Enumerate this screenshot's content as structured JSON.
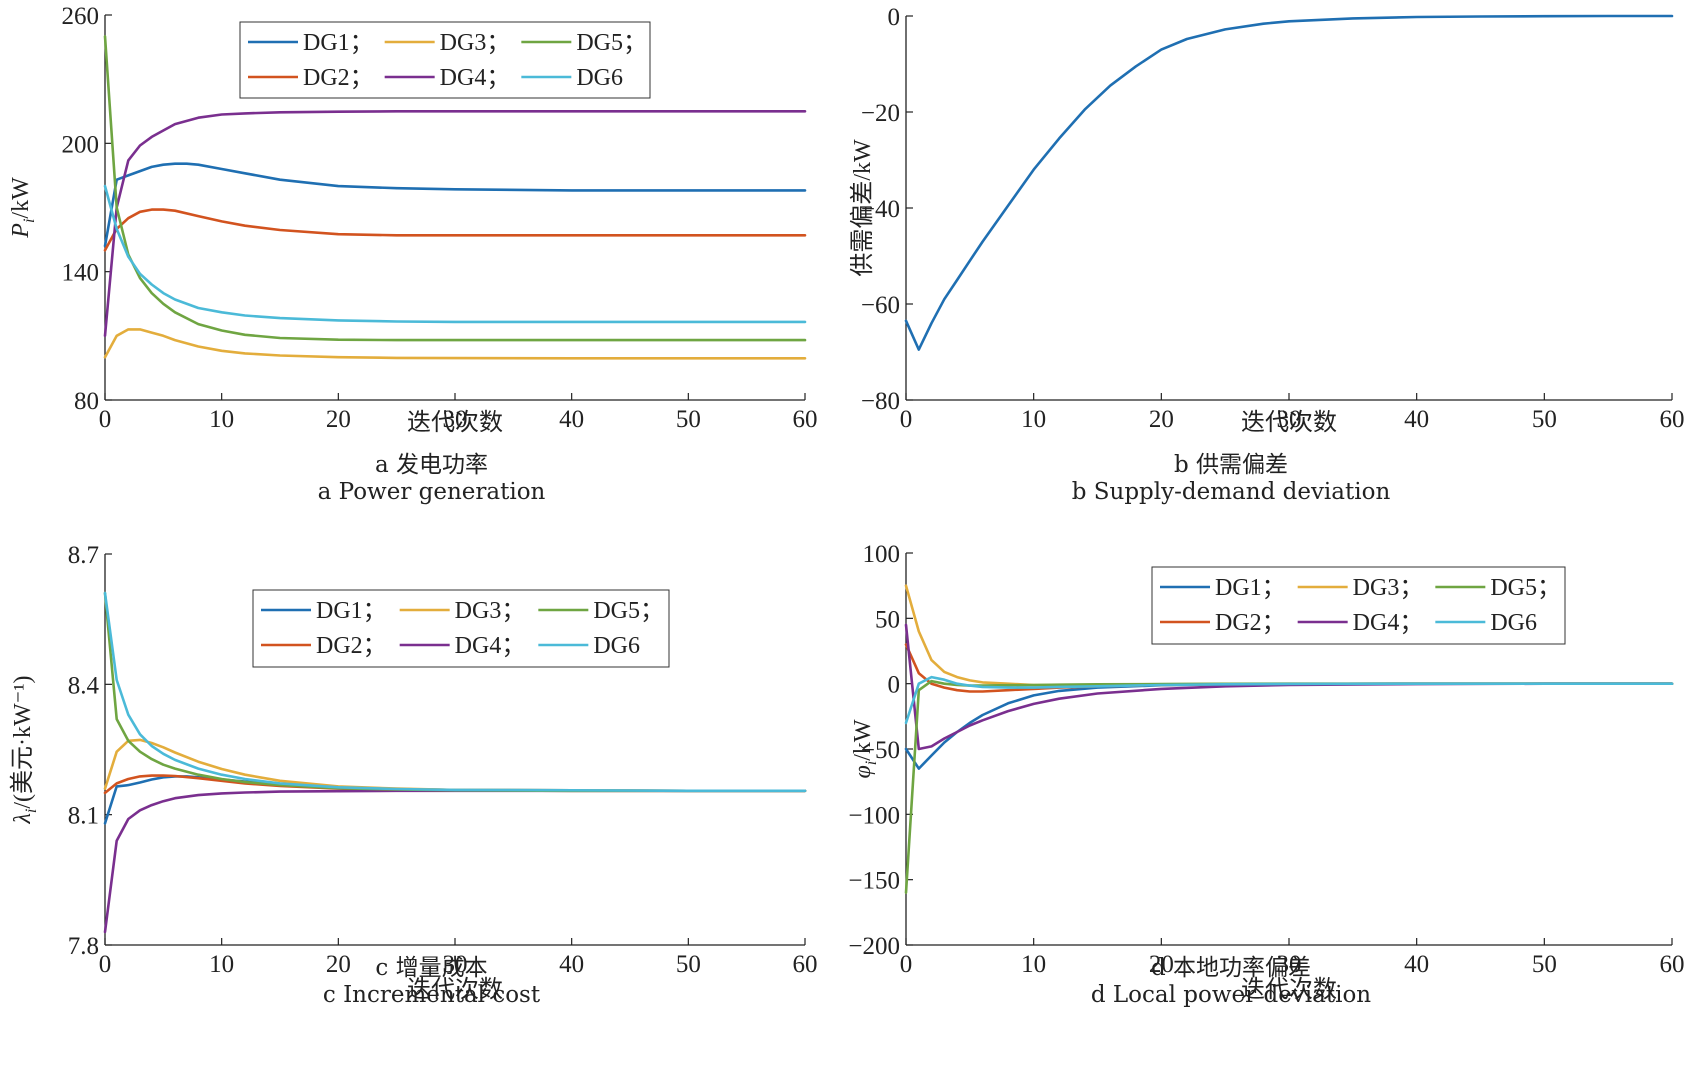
{
  "panels": [
    {
      "id": "a",
      "caption_cn": "a 发电功率",
      "caption_en": "a  Power generation"
    },
    {
      "id": "b",
      "caption_cn": "b 供需偏差",
      "caption_en": "b  Supply-demand deviation"
    },
    {
      "id": "c",
      "caption_cn": "c 增量成本",
      "caption_en": "c  Incremental cost"
    },
    {
      "id": "d",
      "caption_cn": "d 本地功率偏差",
      "caption_en": "d  Local power deviation"
    }
  ],
  "colors": {
    "DG1": "#1f6fb2",
    "DG2": "#d2531f",
    "DG3": "#e3ad3c",
    "DG4": "#7a2f8f",
    "DG5": "#6fa542",
    "DG6": "#4bbad8",
    "single": "#1f6fb2",
    "axis": "#222222"
  },
  "chart_data": [
    {
      "type": "line",
      "xlabel": "迭代次数",
      "ylabel_main": "P",
      "ylabel_sub": "i",
      "ylabel_rest": "/kW",
      "xlim": [
        0,
        60
      ],
      "ylim": [
        80,
        260
      ],
      "xticks": [
        0,
        10,
        20,
        30,
        40,
        50,
        60
      ],
      "yticks": [
        80,
        140,
        200,
        260
      ],
      "legend": "top-center",
      "legend_order": [
        "DG1",
        "DG3",
        "DG5",
        "DG2",
        "DG4",
        "DG6"
      ],
      "legend_labels": [
        "DG1；",
        "DG3；",
        "DG5；",
        "DG2；",
        "DG4；",
        "DG6"
      ],
      "series": [
        {
          "name": "DG1",
          "x": [
            0,
            1,
            2,
            3,
            4,
            5,
            6,
            7,
            8,
            10,
            12,
            15,
            20,
            25,
            30,
            40,
            50,
            60
          ],
          "values": [
            152,
            183,
            185,
            187,
            189,
            190,
            190.5,
            190.5,
            190,
            188,
            186,
            183,
            180,
            179,
            178.5,
            178,
            178,
            178
          ]
        },
        {
          "name": "DG2",
          "x": [
            0,
            1,
            2,
            3,
            4,
            5,
            6,
            8,
            10,
            12,
            15,
            20,
            25,
            30,
            40,
            50,
            60
          ],
          "values": [
            150,
            160,
            165,
            168,
            169,
            169,
            168.5,
            166,
            163.5,
            161.5,
            159.5,
            157.5,
            157,
            157,
            157,
            157,
            157
          ]
        },
        {
          "name": "DG3",
          "x": [
            0,
            1,
            2,
            3,
            4,
            5,
            6,
            8,
            10,
            12,
            15,
            20,
            25,
            30,
            40,
            50,
            60
          ],
          "values": [
            100,
            110,
            113,
            113,
            111.5,
            110,
            108,
            105,
            103,
            101.8,
            100.8,
            100,
            99.7,
            99.6,
            99.5,
            99.5,
            99.5
          ]
        },
        {
          "name": "DG4",
          "x": [
            0,
            1,
            2,
            3,
            4,
            5,
            6,
            8,
            10,
            12,
            15,
            20,
            25,
            30,
            40,
            50,
            60
          ],
          "values": [
            110,
            170,
            192,
            199,
            203,
            206,
            209,
            212,
            213.5,
            214,
            214.5,
            214.8,
            215,
            215,
            215,
            215,
            215
          ]
        },
        {
          "name": "DG5",
          "x": [
            0,
            1,
            2,
            3,
            4,
            5,
            6,
            8,
            10,
            12,
            15,
            20,
            25,
            30,
            40,
            50,
            60
          ],
          "values": [
            250,
            170,
            148,
            137,
            130,
            125,
            121,
            115.5,
            112.5,
            110.5,
            109,
            108.2,
            108,
            108,
            108,
            108,
            108
          ]
        },
        {
          "name": "DG6",
          "x": [
            0,
            1,
            2,
            3,
            4,
            5,
            6,
            8,
            10,
            12,
            15,
            20,
            25,
            30,
            40,
            50,
            60
          ],
          "values": [
            180,
            160,
            147,
            139,
            134,
            130,
            127,
            123,
            121,
            119.5,
            118.3,
            117.2,
            116.7,
            116.5,
            116.5,
            116.5,
            116.5
          ]
        }
      ]
    },
    {
      "type": "line",
      "xlabel": "迭代次数",
      "ylabel_main": "供需偏差/kW",
      "ylabel_sub": "",
      "ylabel_rest": "",
      "xlim": [
        0,
        60
      ],
      "ylim": [
        -80,
        0
      ],
      "xticks": [
        0,
        10,
        20,
        30,
        40,
        50,
        60
      ],
      "yticks": [
        -80,
        -60,
        -40,
        -20,
        0
      ],
      "series": [
        {
          "name": "",
          "x": [
            0,
            1,
            2,
            3,
            4,
            5,
            6,
            8,
            10,
            12,
            14,
            16,
            18,
            20,
            22,
            25,
            28,
            30,
            35,
            40,
            45,
            50,
            55,
            60
          ],
          "values": [
            -63.5,
            -69.5,
            -64,
            -59,
            -55,
            -51,
            -47,
            -39.5,
            -32,
            -25.5,
            -19.5,
            -14.5,
            -10.5,
            -7,
            -4.8,
            -2.8,
            -1.6,
            -1.1,
            -0.5,
            -0.2,
            -0.1,
            -0.05,
            0,
            0
          ]
        }
      ]
    },
    {
      "type": "line",
      "xlabel": "迭代次数",
      "ylabel_main": "λ",
      "ylabel_sub": "i",
      "ylabel_rest": "/(美元·kW⁻¹)",
      "xlim": [
        0,
        60
      ],
      "ylim": [
        7.8,
        8.7
      ],
      "xticks": [
        0,
        10,
        20,
        30,
        40,
        50,
        60
      ],
      "yticks": [
        7.8,
        8.1,
        8.4,
        8.7
      ],
      "legend": "top-center",
      "legend_order": [
        "DG1",
        "DG3",
        "DG5",
        "DG2",
        "DG4",
        "DG6"
      ],
      "legend_labels": [
        "DG1；",
        "DG3；",
        "DG5；",
        "DG2；",
        "DG4；",
        "DG6"
      ],
      "series": [
        {
          "name": "DG1",
          "x": [
            0,
            1,
            2,
            3,
            4,
            5,
            6,
            7,
            8,
            10,
            12,
            15,
            20,
            25,
            30,
            40,
            50,
            60
          ],
          "values": [
            8.08,
            8.165,
            8.168,
            8.174,
            8.181,
            8.186,
            8.188,
            8.188,
            8.186,
            8.181,
            8.176,
            8.17,
            8.162,
            8.159,
            8.157,
            8.156,
            8.155,
            8.155
          ]
        },
        {
          "name": "DG2",
          "x": [
            0,
            1,
            2,
            3,
            4,
            5,
            6,
            8,
            10,
            12,
            15,
            20,
            25,
            30,
            40,
            50,
            60
          ],
          "values": [
            8.15,
            8.172,
            8.182,
            8.188,
            8.19,
            8.19,
            8.189,
            8.184,
            8.178,
            8.172,
            8.166,
            8.16,
            8.157,
            8.156,
            8.155,
            8.155,
            8.155
          ]
        },
        {
          "name": "DG3",
          "x": [
            0,
            1,
            2,
            3,
            4,
            5,
            6,
            8,
            10,
            12,
            15,
            20,
            25,
            30,
            40,
            50,
            60
          ],
          "values": [
            8.16,
            8.245,
            8.27,
            8.272,
            8.265,
            8.255,
            8.243,
            8.222,
            8.205,
            8.192,
            8.178,
            8.165,
            8.16,
            8.157,
            8.156,
            8.155,
            8.155
          ]
        },
        {
          "name": "DG4",
          "x": [
            0,
            1,
            2,
            3,
            4,
            5,
            6,
            8,
            10,
            12,
            15,
            20,
            25,
            30,
            40,
            50,
            60
          ],
          "values": [
            7.83,
            8.04,
            8.09,
            8.11,
            8.122,
            8.131,
            8.138,
            8.145,
            8.149,
            8.151,
            8.153,
            8.154,
            8.155,
            8.155,
            8.155,
            8.155,
            8.155
          ]
        },
        {
          "name": "DG5",
          "x": [
            0,
            1,
            2,
            3,
            4,
            5,
            6,
            8,
            10,
            12,
            15,
            20,
            25,
            30,
            40,
            50,
            60
          ],
          "values": [
            8.61,
            8.32,
            8.27,
            8.245,
            8.228,
            8.215,
            8.206,
            8.192,
            8.182,
            8.175,
            8.168,
            8.161,
            8.158,
            8.156,
            8.155,
            8.155,
            8.155
          ]
        },
        {
          "name": "DG6",
          "x": [
            0,
            1,
            2,
            3,
            4,
            5,
            6,
            8,
            10,
            12,
            15,
            20,
            25,
            30,
            40,
            50,
            60
          ],
          "values": [
            8.61,
            8.41,
            8.33,
            8.285,
            8.258,
            8.24,
            8.226,
            8.206,
            8.192,
            8.182,
            8.172,
            8.163,
            8.159,
            8.157,
            8.156,
            8.155,
            8.155
          ]
        }
      ]
    },
    {
      "type": "line",
      "xlabel": "迭代次数",
      "ylabel_main": "φ",
      "ylabel_sub": "i",
      "ylabel_rest": "/kW",
      "xlim": [
        0,
        60
      ],
      "ylim": [
        -200,
        100
      ],
      "xticks": [
        0,
        10,
        20,
        30,
        40,
        50,
        60
      ],
      "yticks": [
        -200,
        -150,
        -100,
        -50,
        0,
        50,
        100
      ],
      "legend": "top-center",
      "legend_order": [
        "DG1",
        "DG3",
        "DG5",
        "DG2",
        "DG4",
        "DG6"
      ],
      "legend_labels": [
        "DG1；",
        "DG3；",
        "DG5；",
        "DG2；",
        "DG4；",
        "DG6"
      ],
      "series": [
        {
          "name": "DG1",
          "x": [
            0,
            1,
            2,
            3,
            4,
            5,
            6,
            8,
            10,
            12,
            15,
            20,
            25,
            30,
            40,
            50,
            60
          ],
          "values": [
            -50,
            -65,
            -55,
            -45,
            -37,
            -30,
            -24,
            -15,
            -9,
            -5.5,
            -3,
            -1.2,
            -0.5,
            -0.2,
            0,
            0,
            0
          ]
        },
        {
          "name": "DG2",
          "x": [
            0,
            1,
            2,
            3,
            4,
            5,
            6,
            8,
            10,
            12,
            15,
            20,
            25,
            30,
            40,
            50,
            60
          ],
          "values": [
            30,
            8,
            0,
            -3,
            -5,
            -6,
            -6,
            -5,
            -4,
            -3,
            -2,
            -1,
            -0.5,
            -0.2,
            0,
            0,
            0
          ]
        },
        {
          "name": "DG3",
          "x": [
            0,
            1,
            2,
            3,
            4,
            5,
            6,
            8,
            10,
            12,
            15,
            20,
            25,
            30,
            40,
            50,
            60
          ],
          "values": [
            75,
            40,
            18,
            9,
            5,
            2.5,
            1,
            0,
            -1,
            -1,
            -0.8,
            -0.5,
            -0.2,
            0,
            0,
            0,
            0
          ]
        },
        {
          "name": "DG4",
          "x": [
            0,
            1,
            2,
            3,
            4,
            5,
            6,
            8,
            10,
            12,
            15,
            20,
            25,
            30,
            40,
            50,
            60
          ],
          "values": [
            45,
            -50,
            -48,
            -42,
            -37,
            -32,
            -28,
            -21,
            -15.5,
            -11.5,
            -7.5,
            -4,
            -2,
            -1,
            -0.3,
            0,
            0
          ]
        },
        {
          "name": "DG5",
          "x": [
            0,
            1,
            2,
            3,
            4,
            5,
            6,
            8,
            10,
            12,
            15,
            20,
            25,
            30,
            40,
            50,
            60
          ],
          "values": [
            -160,
            -5,
            2,
            0,
            -1,
            -1.5,
            -1.5,
            -1.2,
            -1,
            -0.8,
            -0.5,
            -0.3,
            -0.1,
            0,
            0,
            0,
            0
          ]
        },
        {
          "name": "DG6",
          "x": [
            0,
            1,
            2,
            3,
            4,
            5,
            6,
            8,
            10,
            12,
            15,
            20,
            25,
            30,
            40,
            50,
            60
          ],
          "values": [
            -30,
            0,
            5,
            3,
            0,
            -1.5,
            -2.5,
            -3,
            -3,
            -2.5,
            -2,
            -1,
            -0.5,
            -0.2,
            0,
            0,
            0
          ]
        }
      ]
    }
  ]
}
